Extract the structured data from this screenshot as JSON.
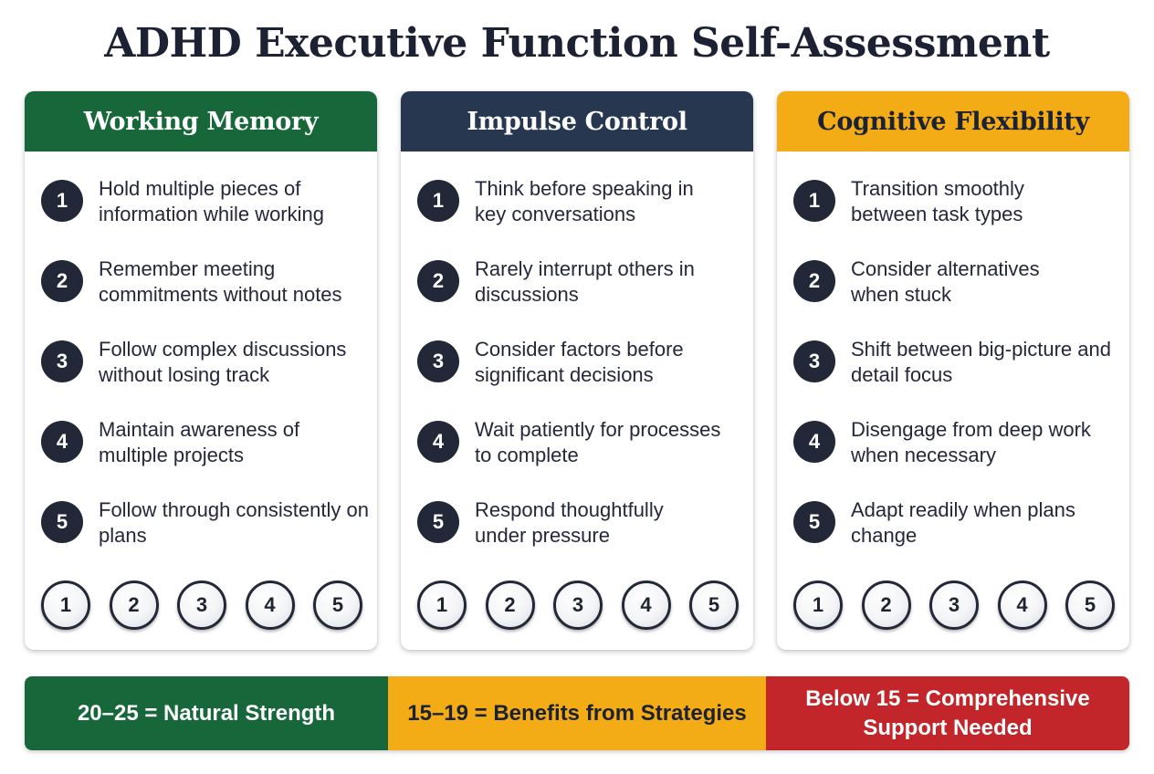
{
  "title": "ADHD Executive Function Self-Assessment",
  "colors": {
    "working_memory": "#17673b",
    "impulse_control": "#26374f",
    "cognitive_flexibility": "#f3ac16",
    "strength": "#17673b",
    "strategies": "#f3ac16",
    "support": "#c2262a"
  },
  "cards": [
    {
      "title": "Working Memory",
      "items": [
        {
          "num": "1",
          "text": "Hold multiple pieces of information while working"
        },
        {
          "num": "2",
          "text": "Remember meeting commitments without notes"
        },
        {
          "num": "3",
          "text": "Follow complex discussions without losing track"
        },
        {
          "num": "4",
          "text": "Maintain awareness of multiple projects"
        },
        {
          "num": "5",
          "text": "Follow through consistently on plans"
        }
      ],
      "rating": [
        "1",
        "2",
        "3",
        "4",
        "5"
      ]
    },
    {
      "title": "Impulse Control",
      "items": [
        {
          "num": "1",
          "text": "Think before speaking in key conversations"
        },
        {
          "num": "2",
          "text": "Rarely interrupt others in discussions"
        },
        {
          "num": "3",
          "text": "Consider factors before significant decisions"
        },
        {
          "num": "4",
          "text": "Wait patiently for processes to complete"
        },
        {
          "num": "5",
          "text": "Respond thoughtfully under pressure"
        }
      ],
      "rating": [
        "1",
        "2",
        "3",
        "4",
        "5"
      ]
    },
    {
      "title": "Cognitive Flexibility",
      "items": [
        {
          "num": "1",
          "text": "Transition smoothly between task types"
        },
        {
          "num": "2",
          "text": "Consider alternatives when stuck"
        },
        {
          "num": "3",
          "text": "Shift between big-picture and detail focus"
        },
        {
          "num": "4",
          "text": "Disengage from deep work when necessary"
        },
        {
          "num": "5",
          "text": "Adapt readily when plans change"
        }
      ],
      "rating": [
        "1",
        "2",
        "3",
        "4",
        "5"
      ]
    }
  ],
  "legend": {
    "strength": "20–25 = Natural Strength",
    "strategies": "15–19 = Benefits from Strategies",
    "support": "Below 15 = Comprehensive Support Needed"
  }
}
